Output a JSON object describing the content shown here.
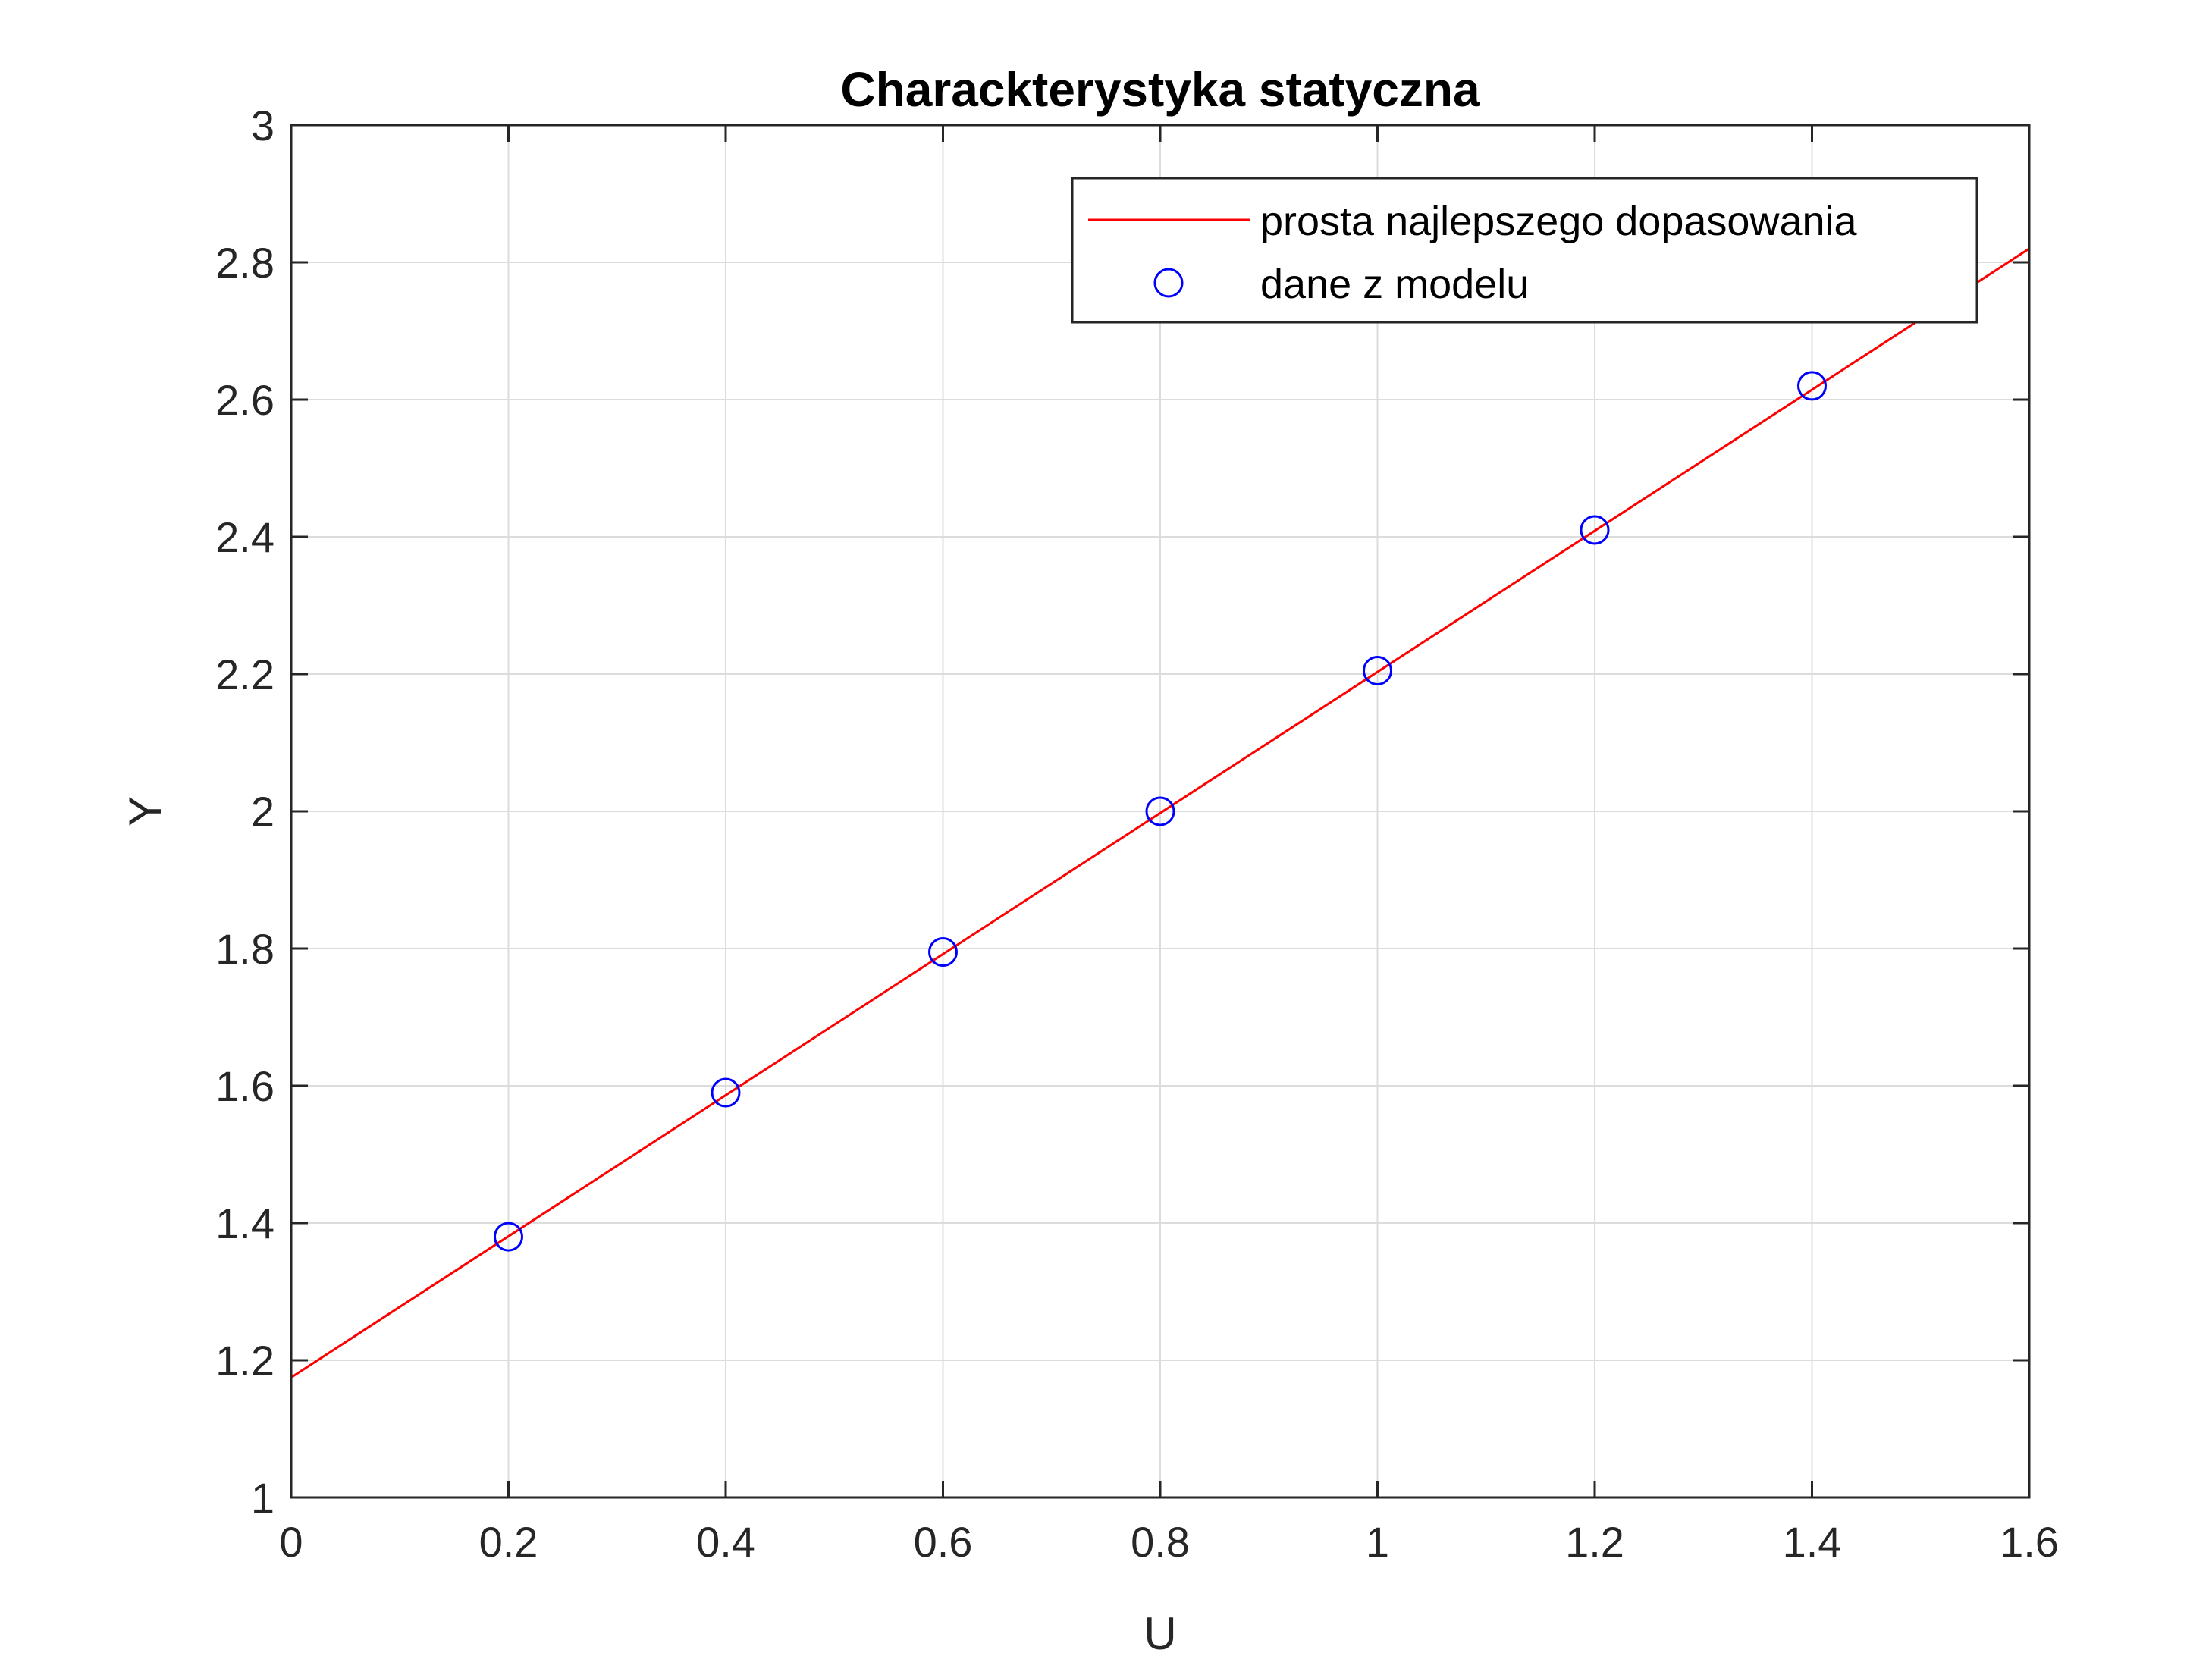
{
  "chart_data": {
    "type": "scatter",
    "title": "Charackterystyka statyczna",
    "xlabel": "U",
    "ylabel": "Y",
    "xlim": [
      0,
      1.6
    ],
    "ylim": [
      1,
      3
    ],
    "xticks": [
      "0",
      "0.2",
      "0.4",
      "0.6",
      "0.8",
      "1",
      "1.2",
      "1.4",
      "1.6"
    ],
    "yticks": [
      "1",
      "1.2",
      "1.4",
      "1.6",
      "1.8",
      "2",
      "2.2",
      "2.4",
      "2.6",
      "2.8",
      "3"
    ],
    "grid": true,
    "legend_position": "top-right",
    "series": [
      {
        "name": "prosta najlepszego dopasowania",
        "kind": "line",
        "color": "#ff0000",
        "x": [
          0,
          1.6
        ],
        "y": [
          1.175,
          2.82
        ]
      },
      {
        "name": "dane z modelu",
        "kind": "markers",
        "marker": "circle",
        "color": "#0000ff",
        "x": [
          0.2,
          0.4,
          0.6,
          0.8,
          1.0,
          1.2,
          1.4
        ],
        "y": [
          1.38,
          1.59,
          1.795,
          2.0,
          2.205,
          2.41,
          2.62
        ]
      }
    ]
  }
}
